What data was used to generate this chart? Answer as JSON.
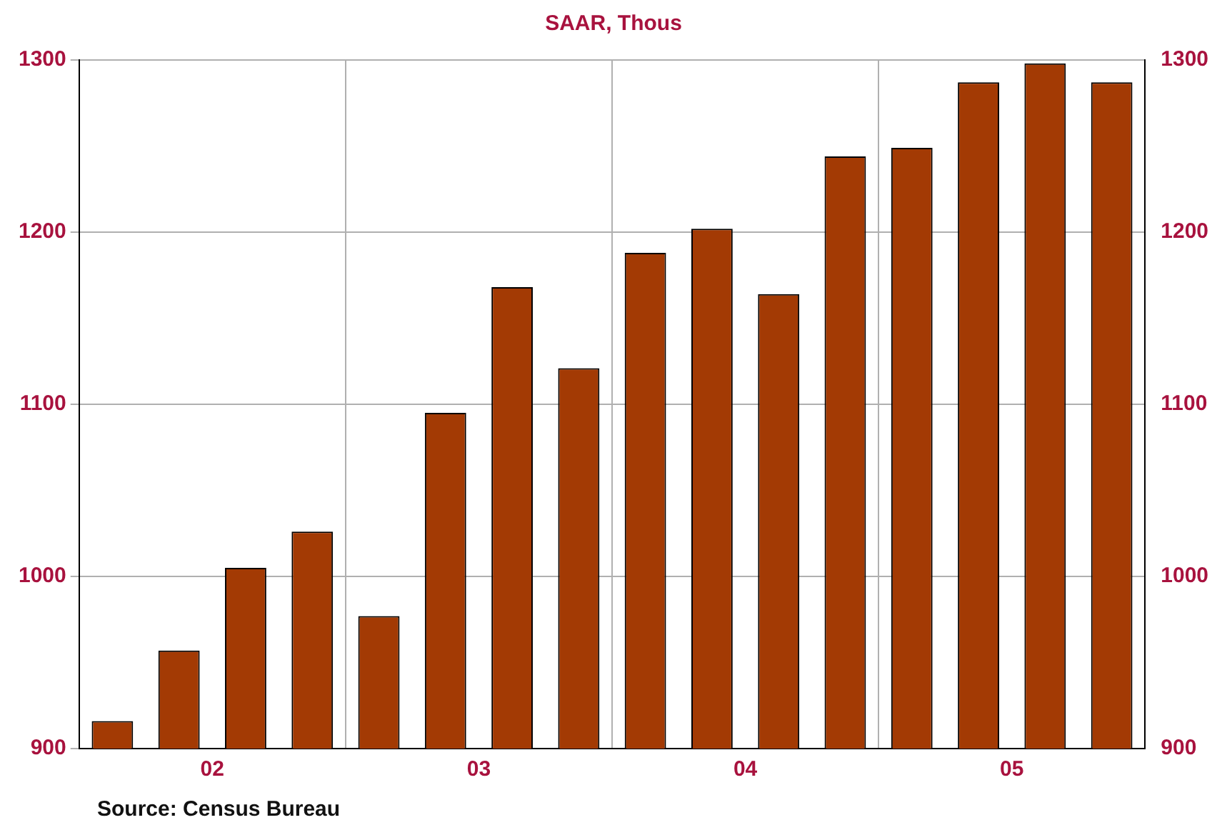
{
  "chart_data": {
    "type": "bar",
    "title": "SAAR, Thous",
    "categories": [
      null,
      "02",
      null,
      null,
      null,
      "03",
      null,
      null,
      null,
      "04",
      null,
      null,
      null,
      "05",
      null,
      null
    ],
    "values": [
      916,
      957,
      1005,
      1026,
      977,
      1095,
      1168,
      1121,
      1188,
      1202,
      1164,
      1244,
      1249,
      1287,
      1298,
      1287
    ],
    "color": "#a33a04",
    "ylim": [
      900,
      1300
    ],
    "yticks": [
      900,
      1000,
      1100,
      1200,
      1300
    ],
    "y2lim": [
      900,
      1300
    ],
    "y2ticks": [
      900,
      1000,
      1100,
      1200,
      1300
    ],
    "grid": true,
    "legend": false,
    "annotations": [
      "Source:  Census Bureau"
    ]
  }
}
